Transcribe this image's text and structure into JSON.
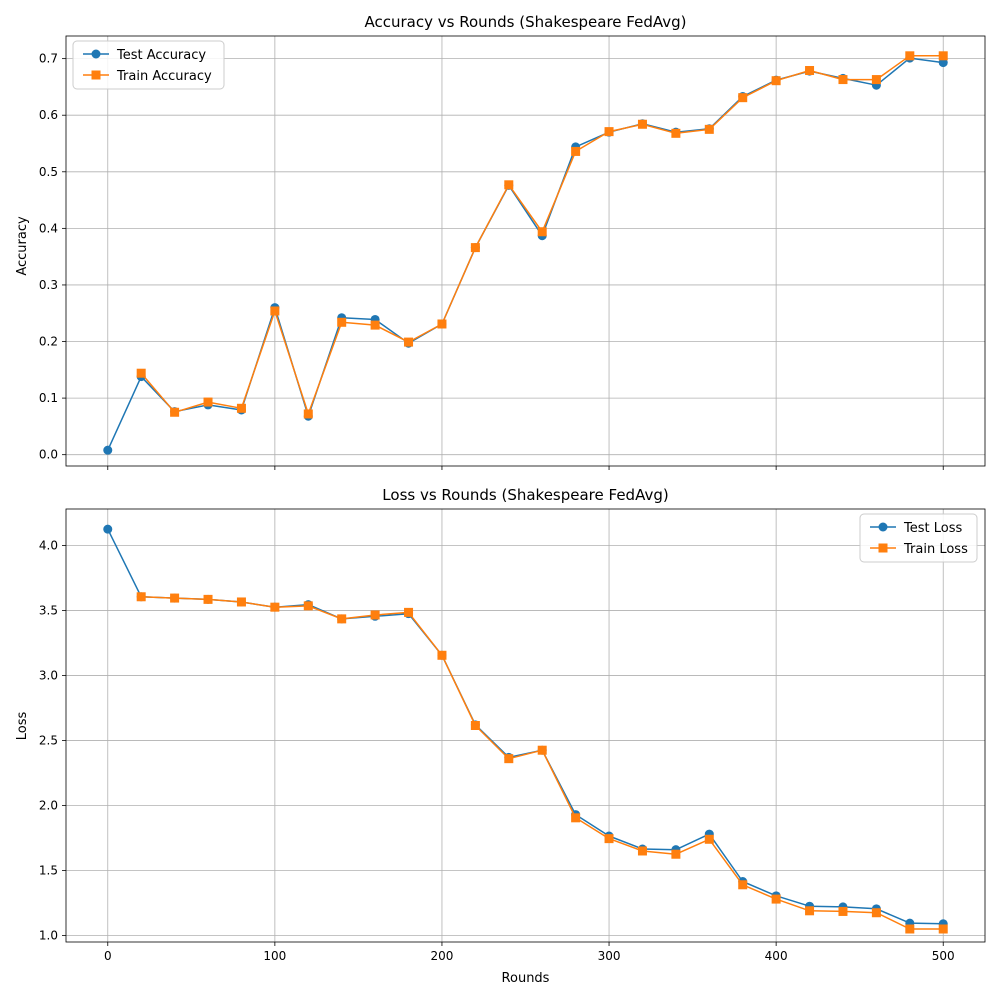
{
  "chart_data": [
    {
      "type": "line",
      "title": "Accuracy vs Rounds (Shakespeare FedAvg)",
      "xlabel": "",
      "ylabel": "Accuracy",
      "xlim": [
        -25,
        525
      ],
      "ylim": [
        -0.02,
        0.74
      ],
      "xticks": [
        0,
        100,
        200,
        300,
        400,
        500
      ],
      "xtick_labels_visible": false,
      "yticks": [
        0.0,
        0.1,
        0.2,
        0.3,
        0.4,
        0.5,
        0.6,
        0.7
      ],
      "ytick_labels": [
        "0.0",
        "0.1",
        "0.2",
        "0.3",
        "0.4",
        "0.5",
        "0.6",
        "0.7"
      ],
      "grid": true,
      "legend_position": "top-left",
      "x": [
        0,
        20,
        40,
        60,
        80,
        100,
        120,
        140,
        160,
        180,
        200,
        220,
        240,
        260,
        280,
        300,
        320,
        340,
        360,
        380,
        400,
        420,
        440,
        460,
        480,
        500
      ],
      "series": [
        {
          "name": "Test Accuracy",
          "color": "#1f77b4",
          "marker": "circle",
          "values": [
            0.008,
            0.138,
            0.076,
            0.088,
            0.079,
            0.26,
            0.068,
            0.242,
            0.239,
            0.197,
            0.231,
            0.366,
            0.476,
            0.387,
            0.544,
            0.57,
            0.585,
            0.57,
            0.576,
            0.633,
            0.662,
            0.678,
            0.665,
            0.653,
            0.701,
            0.693
          ]
        },
        {
          "name": "Train Accuracy",
          "color": "#ff7f0e",
          "marker": "square",
          "values": [
            null,
            0.144,
            0.075,
            0.093,
            0.082,
            0.254,
            0.072,
            0.234,
            0.229,
            0.199,
            0.231,
            0.366,
            0.477,
            0.394,
            0.536,
            0.571,
            0.584,
            0.568,
            0.575,
            0.631,
            0.661,
            0.679,
            0.663,
            0.663,
            0.705,
            0.705
          ]
        }
      ]
    },
    {
      "type": "line",
      "title": "Loss vs Rounds (Shakespeare FedAvg)",
      "xlabel": "Rounds",
      "ylabel": "Loss",
      "xlim": [
        -25,
        525
      ],
      "ylim": [
        0.95,
        4.28
      ],
      "xticks": [
        0,
        100,
        200,
        300,
        400,
        500
      ],
      "xtick_labels": [
        "0",
        "100",
        "200",
        "300",
        "400",
        "500"
      ],
      "yticks": [
        1.0,
        1.5,
        2.0,
        2.5,
        3.0,
        3.5,
        4.0
      ],
      "ytick_labels": [
        "1.0",
        "1.5",
        "2.0",
        "2.5",
        "3.0",
        "3.5",
        "4.0"
      ],
      "grid": true,
      "legend_position": "top-right",
      "x": [
        0,
        20,
        40,
        60,
        80,
        100,
        120,
        140,
        160,
        180,
        200,
        220,
        240,
        260,
        280,
        300,
        320,
        340,
        360,
        380,
        400,
        420,
        440,
        460,
        480,
        500
      ],
      "series": [
        {
          "name": "Test Loss",
          "color": "#1f77b4",
          "marker": "circle",
          "values": [
            4.125,
            3.605,
            3.595,
            3.585,
            3.565,
            3.525,
            3.545,
            3.435,
            3.455,
            3.475,
            3.155,
            2.62,
            2.37,
            2.425,
            1.93,
            1.765,
            1.665,
            1.66,
            1.78,
            1.415,
            1.305,
            1.225,
            1.22,
            1.205,
            1.095,
            1.09
          ]
        },
        {
          "name": "Train Loss",
          "color": "#ff7f0e",
          "marker": "square",
          "values": [
            null,
            3.605,
            3.595,
            3.585,
            3.565,
            3.525,
            3.535,
            3.435,
            3.465,
            3.485,
            3.155,
            2.615,
            2.36,
            2.425,
            1.905,
            1.745,
            1.65,
            1.625,
            1.74,
            1.39,
            1.28,
            1.19,
            1.185,
            1.175,
            1.05,
            1.05
          ]
        }
      ]
    }
  ]
}
